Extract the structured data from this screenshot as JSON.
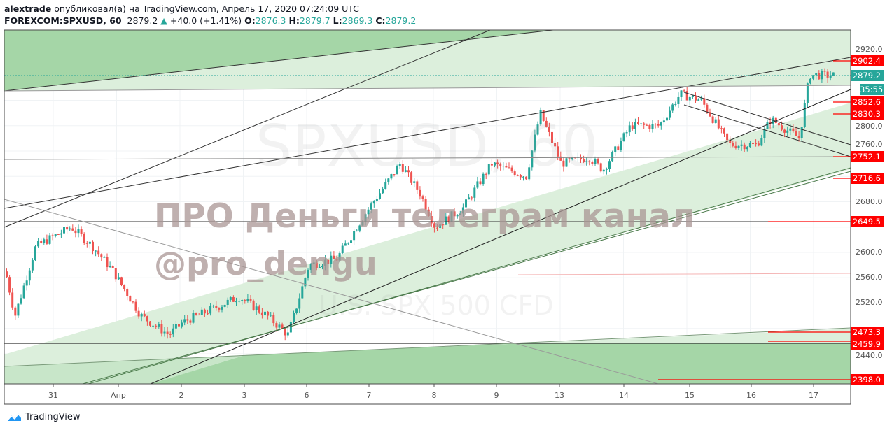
{
  "header": {
    "author": "alextrade",
    "published_text": "опубликовал(а) на TradingView.com, Апрель 17, 2020 07:24:09 UTC",
    "symbol": "FOREXCOM:SPXUSD, 60",
    "last_price": "2879.2",
    "change": "+40.0 (+1.41%)",
    "open_label": "O:",
    "open": "2876.3",
    "high_label": "H:",
    "high": "2879.7",
    "low_label": "L:",
    "low": "2869.3",
    "close_label": "C:",
    "close": "2879.2"
  },
  "watermark": {
    "symbol": "SPXUSD, 60",
    "description": "U.S. SPX 500 CFD"
  },
  "overlay": {
    "line1": "ПРО Деньги телеграм канал",
    "line2": "@pro_dengu"
  },
  "price_axis": {
    "ticks": [
      "2920.0",
      "2800.0",
      "2760.0",
      "2680.0",
      "2600.0",
      "2560.0",
      "2520.0",
      "2440.0"
    ],
    "labels": [
      {
        "text": "2902.4",
        "kind": "red"
      },
      {
        "text": "2879.2",
        "kind": "teal"
      },
      {
        "text": "35:55",
        "kind": "teal"
      },
      {
        "text": "2852.6",
        "kind": "red"
      },
      {
        "text": "2830.3",
        "kind": "red"
      },
      {
        "text": "2752.1",
        "kind": "red"
      },
      {
        "text": "2716.6",
        "kind": "red"
      },
      {
        "text": "2649.5",
        "kind": "red"
      },
      {
        "text": "2473.3",
        "kind": "red"
      },
      {
        "text": "2459.9",
        "kind": "red"
      },
      {
        "text": "2398.0",
        "kind": "red"
      }
    ]
  },
  "time_axis": {
    "labels": [
      "31",
      "Апр",
      "2",
      "3",
      "6",
      "7",
      "8",
      "9",
      "13",
      "14",
      "15",
      "16",
      "17"
    ]
  },
  "colors": {
    "up": "#26a69a",
    "down": "#ef5350",
    "zone_light": "#dcefdc",
    "zone_dark": "#a5d6a7",
    "label_red": "#ff0000",
    "label_teal": "#26a69a"
  },
  "chart_data": {
    "type": "candlestick",
    "interval": "60",
    "ylim": [
      2385,
      2950
    ],
    "price_path": [
      [
        -0.77,
        2570
      ],
      [
        -0.62,
        2500
      ],
      [
        -0.29,
        2610
      ],
      [
        0.27,
        2640
      ],
      [
        0.6,
        2610
      ],
      [
        0.93,
        2570
      ],
      [
        1.37,
        2500
      ],
      [
        1.81,
        2470
      ],
      [
        2.03,
        2490
      ],
      [
        2.48,
        2510
      ],
      [
        2.92,
        2530
      ],
      [
        3.36,
        2500
      ],
      [
        3.69,
        2470
      ],
      [
        4.02,
        2580
      ],
      [
        4.46,
        2590
      ],
      [
        4.9,
        2660
      ],
      [
        5.46,
        2740
      ],
      [
        5.79,
        2690
      ],
      [
        6.01,
        2640
      ],
      [
        6.45,
        2670
      ],
      [
        6.9,
        2740
      ],
      [
        7.45,
        2720
      ],
      [
        7.67,
        2820
      ],
      [
        8.0,
        2740
      ],
      [
        8.44,
        2750
      ],
      [
        8.66,
        2730
      ],
      [
        9.1,
        2800
      ],
      [
        9.55,
        2800
      ],
      [
        9.88,
        2850
      ],
      [
        10.21,
        2840
      ],
      [
        10.65,
        2770
      ],
      [
        11.09,
        2770
      ],
      [
        11.31,
        2810
      ],
      [
        11.76,
        2780
      ],
      [
        11.92,
        2880
      ],
      [
        12.31,
        2879.2
      ]
    ]
  },
  "brand": {
    "name": "TradingView"
  }
}
